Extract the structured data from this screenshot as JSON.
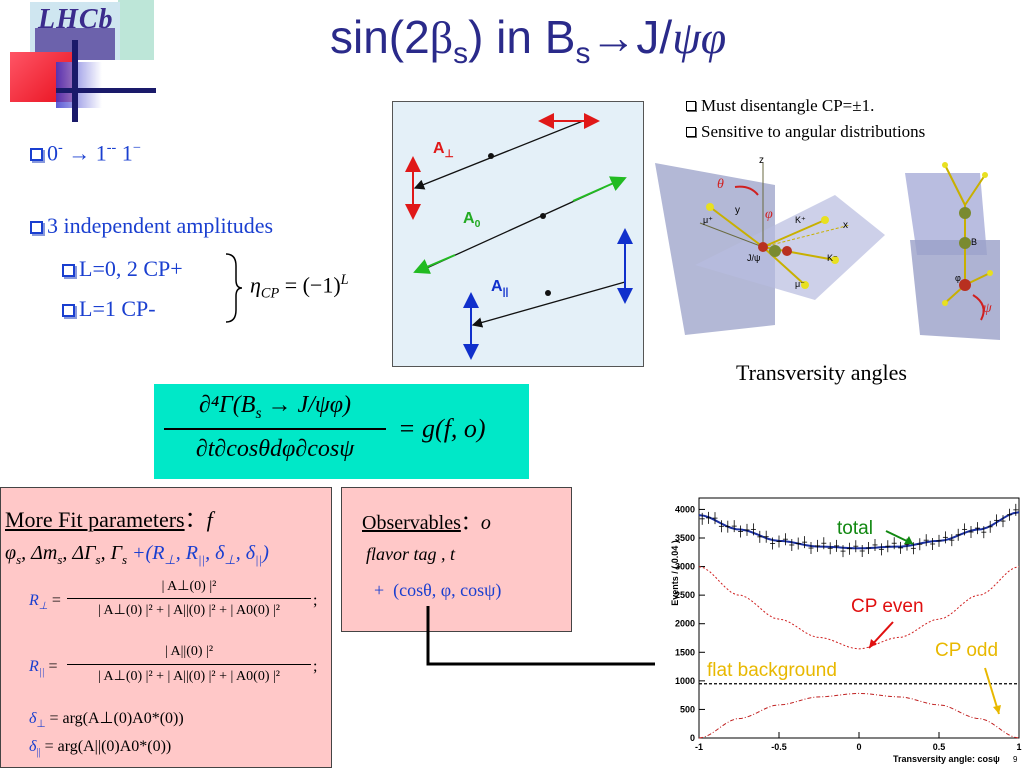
{
  "slide": {
    "logo_text": "LHCb",
    "title_main": "sin(2",
    "title_beta": "β",
    "title_s": "s",
    "title_mid": ") in B",
    "title_s2": "s",
    "title_arrow": "→",
    "title_end": "J/",
    "title_psiphi": "ψφ"
  },
  "left": {
    "item1_a": "0",
    "item1_b": "-",
    "item1_arrow": "→",
    "item1_c": "1",
    "item1_d": "--",
    "item1_e": "1",
    "item1_f": "−",
    "item2": "3 independent amplitudes",
    "sub1": "L=0, 2 CP+",
    "sub2": "L=1 CP-",
    "eta_formula": "η",
    "eta_sub": "CP",
    "eta_rhs": " = (−1)",
    "eta_sup": "L"
  },
  "diagram": {
    "label_perp": "A",
    "label_perp_sub": "⊥",
    "label_zero": "A",
    "label_zero_sub": "0",
    "label_par": "A",
    "label_par_sub": "||"
  },
  "right_top": {
    "bullet1": "Must disentangle CP=±1.",
    "bullet2": "Sensitive to angular distributions",
    "caption": "Transversity angles",
    "z": "z",
    "x": "x",
    "y": "y",
    "theta": "θ",
    "phi": "φ",
    "psi": "ψ",
    "kplus": "K⁺",
    "kminus": "K⁻",
    "muplus": "μ⁺",
    "muminus": "μ⁻",
    "B": "B",
    "jpsi": "J/ψ",
    "phi2": "φ"
  },
  "master_eq": {
    "num": "∂⁴Γ(B",
    "num_s": "s",
    "num_rest": " → J/ψφ)",
    "den": "∂t∂cosθdφ∂cosψ",
    "rhs": "= g(f, o)"
  },
  "fitbox": {
    "title": "More Fit parameters",
    "colon": "：",
    "f": "f",
    "params": "φ",
    "params_s": "s",
    "params_rest": ", Δm",
    "params_s2": "s",
    "params_rest2": ", ΔΓ",
    "params_s3": "s",
    "params_rest3": ", Γ",
    "params_s4": "s",
    "params_plus": " +(R",
    "params_perp": "⊥",
    "params_r2": ", R",
    "params_par": "||",
    "params_d1": ", δ",
    "params_perp2": "⊥",
    "params_d2": ", δ",
    "params_par2": "||",
    "params_close": ")",
    "Rperp_lhs": "R",
    "Rperp_sub": "⊥",
    "Rperp_num": "| A⊥(0) |²",
    "Rperp_den": "| A⊥(0) |² + | A||(0) |² + | A0(0) |²",
    "Rpar_lhs": "R",
    "Rpar_sub": "||",
    "Rpar_num": "| A||(0) |²",
    "Rpar_den": "| A⊥(0) |² + | A||(0) |² + | A0(0) |²",
    "dperp_lhs": "δ",
    "dperp_sub": "⊥",
    "dperp_rhs": " = arg(A⊥(0)A0*(0))",
    "dpar_lhs": "δ",
    "dpar_sub": "||",
    "dpar_rhs": " = arg(A||(0)A0*(0))",
    "semi": ";"
  },
  "obsbox": {
    "title": "Observables",
    "colon": "：",
    "o": "o",
    "line1": "flavor tag , t",
    "line2_plus": "+",
    "line2": "(cosθ, φ, cosψ)"
  },
  "plot": {
    "ylabel": "Events / ( 0.04 )",
    "xlabel": "Transversity angle: cosψ",
    "label_total": "total",
    "label_cpeven": "CP even",
    "label_cpodd": "CP odd",
    "label_bkg": "flat background",
    "yticks": [
      "0",
      "500",
      "1000",
      "1500",
      "2000",
      "2500",
      "3000",
      "3500",
      "4000"
    ],
    "xticks": [
      "-1",
      "-0.5",
      "0",
      "0.5",
      "1"
    ],
    "color_total": "#1a2fa0",
    "color_even": "#d02020",
    "color_odd": "#c02020",
    "color_label_total": "#118811",
    "color_label_even": "#e01010",
    "color_label_odd": "#e8b800"
  },
  "chart_data": {
    "type": "line",
    "xlabel": "Transversity angle: cosψ",
    "ylabel": "Events / ( 0.04 )",
    "xlim": [
      -1,
      1
    ],
    "ylim": [
      0,
      4200
    ],
    "series": [
      {
        "name": "total",
        "x": [
          -1,
          -0.75,
          -0.5,
          -0.25,
          0,
          0.25,
          0.5,
          0.75,
          1
        ],
        "values": [
          3900,
          3650,
          3450,
          3350,
          3320,
          3350,
          3450,
          3650,
          3950
        ]
      },
      {
        "name": "CP even",
        "x": [
          -1,
          -0.75,
          -0.5,
          -0.25,
          0,
          0.25,
          0.5,
          0.75,
          1
        ],
        "values": [
          3000,
          2500,
          2080,
          1760,
          1560,
          1760,
          2080,
          2500,
          3000
        ]
      },
      {
        "name": "CP odd",
        "x": [
          -1,
          -0.75,
          -0.5,
          -0.25,
          0,
          0.25,
          0.5,
          0.75,
          1
        ],
        "values": [
          0,
          340,
          580,
          720,
          780,
          720,
          580,
          340,
          0
        ]
      },
      {
        "name": "flat background",
        "x": [
          -1,
          1
        ],
        "values": [
          950,
          950
        ]
      }
    ]
  },
  "footer": {
    "page": "9"
  }
}
